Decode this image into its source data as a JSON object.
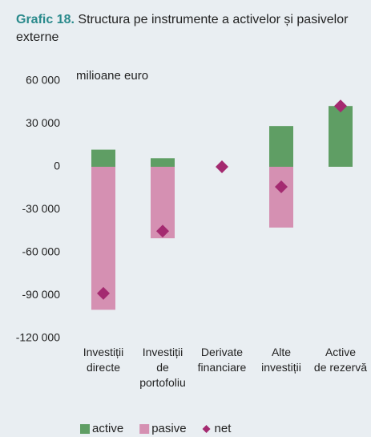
{
  "chart_data": {
    "type": "bar",
    "title_label": "Grafic 18.",
    "title": "Structura pe instrumente a activelor și pasivelor externe",
    "y_unit": "milioane euro",
    "categories": [
      "Investiții\ndirecte",
      "Investiții\nde\nportofoliu",
      "Derivate\nfinanciare",
      "Alte\ninvestiții",
      "Active\nde rezervă"
    ],
    "series": [
      {
        "name": "active",
        "color": "#5f9e64",
        "values": [
          12000,
          6000,
          0,
          28500,
          42500
        ],
        "marker": "bar"
      },
      {
        "name": "pasive",
        "color": "#d590b2",
        "values": [
          -100000,
          -50000,
          0,
          -42500,
          0
        ],
        "marker": "bar"
      },
      {
        "name": "net",
        "color": "#a42a70",
        "values": [
          -88500,
          -45000,
          0,
          -14000,
          42500
        ],
        "marker": "diamond"
      }
    ],
    "ylim": [
      -120000,
      60000
    ],
    "yticks": [
      {
        "value": -120000,
        "label": "-120 000"
      },
      {
        "value": -90000,
        "label": "-90 000"
      },
      {
        "value": -60000,
        "label": "-60 000"
      },
      {
        "value": -30000,
        "label": "-30 000"
      },
      0,
      {
        "value": 30000,
        "label": "30 000"
      },
      {
        "value": 60000,
        "label": "60 000"
      }
    ],
    "grid": false,
    "legend": "bottom"
  }
}
